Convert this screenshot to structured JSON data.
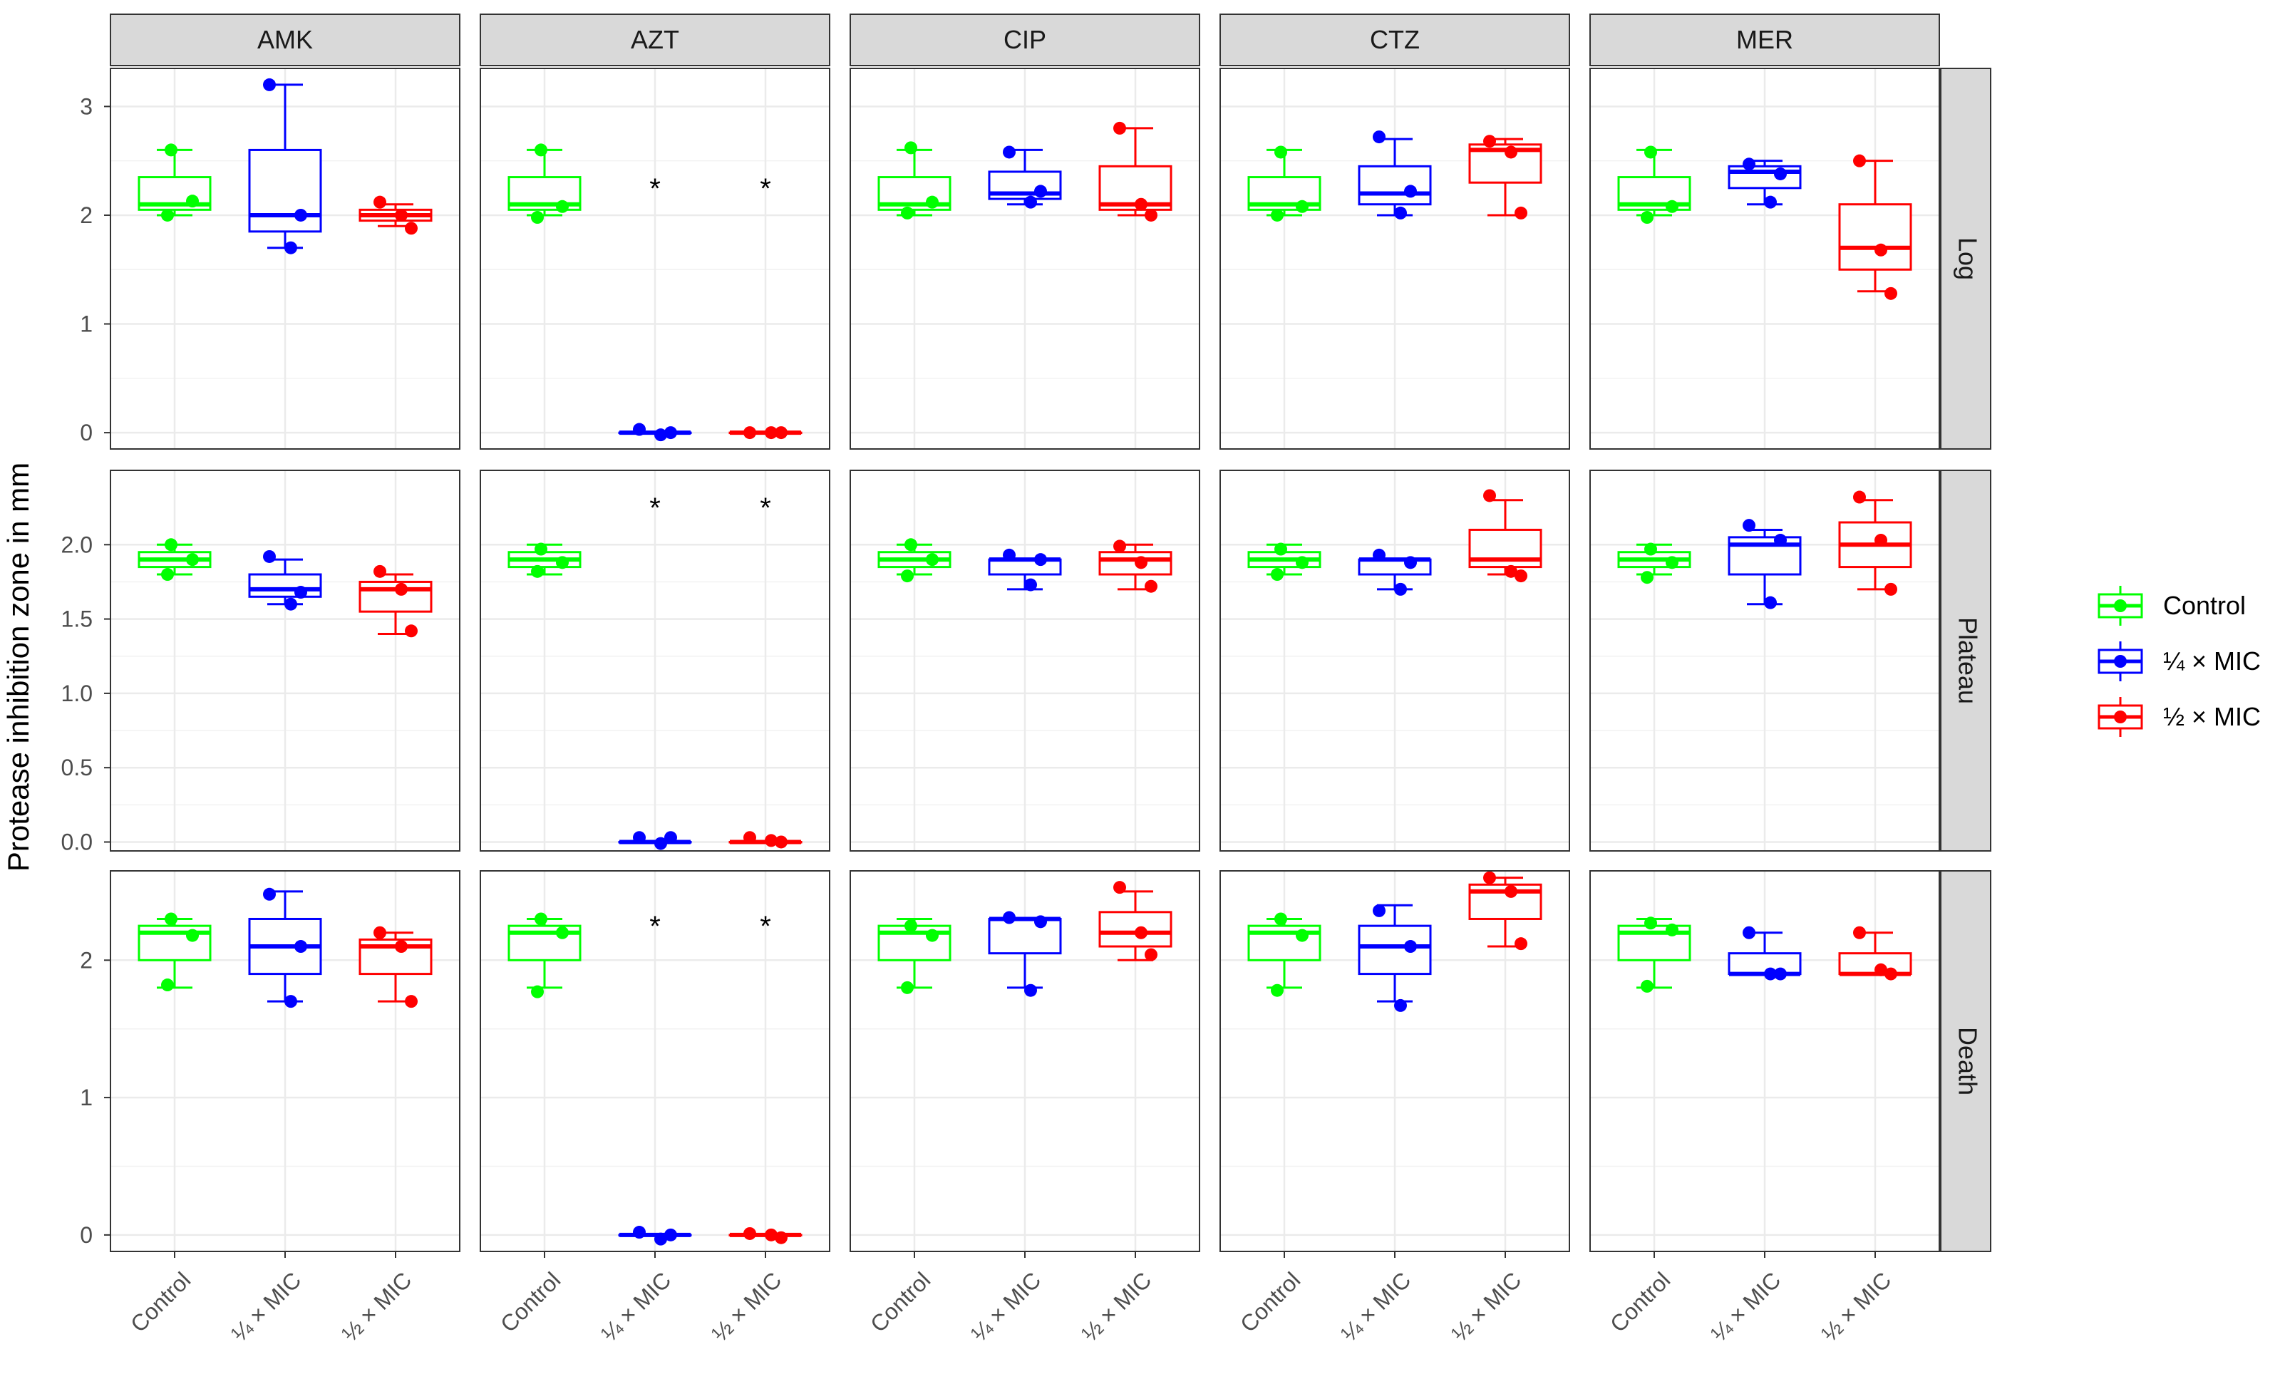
{
  "chart_data": {
    "type": "boxplot",
    "ylabel": "Protease inhibition zone in mm",
    "xlabel": "",
    "facet_columns": [
      "AMK",
      "AZT",
      "CIP",
      "CTZ",
      "MER"
    ],
    "facet_rows": [
      "Log",
      "Plateau",
      "Death"
    ],
    "categories": [
      "Control",
      "¼ × MIC",
      "½ × MIC"
    ],
    "legend": [
      {
        "name": "Control",
        "label": "Control",
        "color": "#00ff00"
      },
      {
        "name": "quarter-mic",
        "label": "¼ × MIC",
        "color": "#0000ff"
      },
      {
        "name": "half-mic",
        "label": "½ × MIC",
        "color": "#ff0000"
      }
    ],
    "significance_marker": "*",
    "rows": [
      {
        "name": "Log",
        "ylim": [
          -0.15,
          3.35
        ],
        "yticks": [
          0,
          1,
          2,
          3
        ],
        "ytick_labels": [
          "0",
          "1",
          "2",
          "3"
        ],
        "panels": [
          {
            "facet": "AMK",
            "groups": [
              {
                "min": 2.0,
                "q1": 2.05,
                "median": 2.1,
                "q3": 2.35,
                "max": 2.6,
                "points": [
                  2.6,
                  2.13,
                  2.0
                ]
              },
              {
                "min": 1.7,
                "q1": 1.85,
                "median": 2.0,
                "q3": 2.6,
                "max": 3.2,
                "points": [
                  3.2,
                  2.0,
                  1.7
                ]
              },
              {
                "min": 1.9,
                "q1": 1.95,
                "median": 2.0,
                "q3": 2.05,
                "max": 2.1,
                "points": [
                  2.12,
                  2.0,
                  1.88
                ]
              }
            ]
          },
          {
            "facet": "AZT",
            "groups": [
              {
                "min": 2.0,
                "q1": 2.05,
                "median": 2.1,
                "q3": 2.35,
                "max": 2.6,
                "points": [
                  2.6,
                  2.08,
                  1.98
                ]
              },
              {
                "min": 0.0,
                "q1": 0.0,
                "median": 0.0,
                "q3": 0.0,
                "max": 0.0,
                "points": [
                  0.03,
                  0.0,
                  -0.02
                ],
                "star": 2.25
              },
              {
                "min": 0.0,
                "q1": 0.0,
                "median": 0.0,
                "q3": 0.0,
                "max": 0.0,
                "points": [
                  0.0,
                  0.0,
                  0.0
                ],
                "star": 2.25
              }
            ]
          },
          {
            "facet": "CIP",
            "groups": [
              {
                "min": 2.0,
                "q1": 2.05,
                "median": 2.1,
                "q3": 2.35,
                "max": 2.6,
                "points": [
                  2.62,
                  2.12,
                  2.02
                ]
              },
              {
                "min": 2.1,
                "q1": 2.15,
                "median": 2.2,
                "q3": 2.4,
                "max": 2.6,
                "points": [
                  2.58,
                  2.22,
                  2.12
                ]
              },
              {
                "min": 2.0,
                "q1": 2.05,
                "median": 2.1,
                "q3": 2.45,
                "max": 2.8,
                "points": [
                  2.8,
                  2.1,
                  2.0
                ]
              }
            ]
          },
          {
            "facet": "CTZ",
            "groups": [
              {
                "min": 2.0,
                "q1": 2.05,
                "median": 2.1,
                "q3": 2.35,
                "max": 2.6,
                "points": [
                  2.58,
                  2.08,
                  2.0
                ]
              },
              {
                "min": 2.0,
                "q1": 2.1,
                "median": 2.2,
                "q3": 2.45,
                "max": 2.7,
                "points": [
                  2.72,
                  2.22,
                  2.02
                ]
              },
              {
                "min": 2.0,
                "q1": 2.3,
                "median": 2.6,
                "q3": 2.65,
                "max": 2.7,
                "points": [
                  2.68,
                  2.58,
                  2.02
                ]
              }
            ]
          },
          {
            "facet": "MER",
            "groups": [
              {
                "min": 2.0,
                "q1": 2.05,
                "median": 2.1,
                "q3": 2.35,
                "max": 2.6,
                "points": [
                  2.58,
                  2.08,
                  1.98
                ]
              },
              {
                "min": 2.1,
                "q1": 2.25,
                "median": 2.4,
                "q3": 2.45,
                "max": 2.5,
                "points": [
                  2.47,
                  2.38,
                  2.12
                ]
              },
              {
                "min": 1.3,
                "q1": 1.5,
                "median": 1.7,
                "q3": 2.1,
                "max": 2.5,
                "points": [
                  2.5,
                  1.68,
                  1.28
                ]
              }
            ]
          }
        ]
      },
      {
        "name": "Plateau",
        "ylim": [
          -0.06,
          2.5
        ],
        "yticks": [
          0,
          0.5,
          1,
          1.5,
          2
        ],
        "ytick_labels": [
          "0.0",
          "0.5",
          "1.0",
          "1.5",
          "2.0"
        ],
        "panels": [
          {
            "facet": "AMK",
            "groups": [
              {
                "min": 1.8,
                "q1": 1.85,
                "median": 1.9,
                "q3": 1.95,
                "max": 2.0,
                "points": [
                  2.0,
                  1.9,
                  1.8
                ]
              },
              {
                "min": 1.6,
                "q1": 1.65,
                "median": 1.7,
                "q3": 1.8,
                "max": 1.9,
                "points": [
                  1.92,
                  1.68,
                  1.6
                ]
              },
              {
                "min": 1.4,
                "q1": 1.55,
                "median": 1.7,
                "q3": 1.75,
                "max": 1.8,
                "points": [
                  1.82,
                  1.7,
                  1.42
                ]
              }
            ]
          },
          {
            "facet": "AZT",
            "groups": [
              {
                "min": 1.8,
                "q1": 1.85,
                "median": 1.9,
                "q3": 1.95,
                "max": 2.0,
                "points": [
                  1.97,
                  1.88,
                  1.82
                ]
              },
              {
                "min": 0.0,
                "q1": 0.0,
                "median": 0.0,
                "q3": 0.0,
                "max": 0.0,
                "points": [
                  0.03,
                  0.03,
                  -0.01
                ],
                "star": 2.25
              },
              {
                "min": 0.0,
                "q1": 0.0,
                "median": 0.0,
                "q3": 0.0,
                "max": 0.0,
                "points": [
                  0.03,
                  0.01,
                  0.0
                ],
                "star": 2.25
              }
            ]
          },
          {
            "facet": "CIP",
            "groups": [
              {
                "min": 1.8,
                "q1": 1.85,
                "median": 1.9,
                "q3": 1.95,
                "max": 2.0,
                "points": [
                  2.0,
                  1.9,
                  1.79
                ]
              },
              {
                "min": 1.7,
                "q1": 1.8,
                "median": 1.9,
                "q3": 1.9,
                "max": 1.9,
                "points": [
                  1.93,
                  1.9,
                  1.73
                ]
              },
              {
                "min": 1.7,
                "q1": 1.8,
                "median": 1.9,
                "q3": 1.95,
                "max": 2.0,
                "points": [
                  1.99,
                  1.88,
                  1.72
                ]
              }
            ]
          },
          {
            "facet": "CTZ",
            "groups": [
              {
                "min": 1.8,
                "q1": 1.85,
                "median": 1.9,
                "q3": 1.95,
                "max": 2.0,
                "points": [
                  1.97,
                  1.88,
                  1.8
                ]
              },
              {
                "min": 1.7,
                "q1": 1.8,
                "median": 1.9,
                "q3": 1.9,
                "max": 1.9,
                "points": [
                  1.93,
                  1.88,
                  1.7
                ]
              },
              {
                "min": 1.8,
                "q1": 1.85,
                "median": 1.9,
                "q3": 2.1,
                "max": 2.3,
                "points": [
                  2.33,
                  1.82,
                  1.79
                ]
              }
            ]
          },
          {
            "facet": "MER",
            "groups": [
              {
                "min": 1.8,
                "q1": 1.85,
                "median": 1.9,
                "q3": 1.95,
                "max": 2.0,
                "points": [
                  1.97,
                  1.88,
                  1.78
                ]
              },
              {
                "min": 1.6,
                "q1": 1.8,
                "median": 2.0,
                "q3": 2.05,
                "max": 2.1,
                "points": [
                  2.13,
                  2.03,
                  1.61
                ]
              },
              {
                "min": 1.7,
                "q1": 1.85,
                "median": 2.0,
                "q3": 2.15,
                "max": 2.3,
                "points": [
                  2.32,
                  2.03,
                  1.7
                ]
              }
            ]
          }
        ]
      },
      {
        "name": "Death",
        "ylim": [
          -0.12,
          2.65
        ],
        "yticks": [
          0,
          1,
          2
        ],
        "ytick_labels": [
          "0",
          "1",
          "2"
        ],
        "panels": [
          {
            "facet": "AMK",
            "groups": [
              {
                "min": 1.8,
                "q1": 2.0,
                "median": 2.2,
                "q3": 2.25,
                "max": 2.3,
                "points": [
                  2.3,
                  2.18,
                  1.82
                ]
              },
              {
                "min": 1.7,
                "q1": 1.9,
                "median": 2.1,
                "q3": 2.3,
                "max": 2.5,
                "points": [
                  2.48,
                  2.1,
                  1.7
                ]
              },
              {
                "min": 1.7,
                "q1": 1.9,
                "median": 2.1,
                "q3": 2.15,
                "max": 2.2,
                "points": [
                  2.2,
                  2.1,
                  1.7
                ]
              }
            ]
          },
          {
            "facet": "AZT",
            "groups": [
              {
                "min": 1.8,
                "q1": 2.0,
                "median": 2.2,
                "q3": 2.25,
                "max": 2.3,
                "points": [
                  2.3,
                  2.2,
                  1.77
                ]
              },
              {
                "min": 0.0,
                "q1": 0.0,
                "median": 0.0,
                "q3": 0.0,
                "max": 0.0,
                "points": [
                  0.02,
                  0.0,
                  -0.03
                ],
                "star": 2.25
              },
              {
                "min": 0.0,
                "q1": 0.0,
                "median": 0.0,
                "q3": 0.0,
                "max": 0.0,
                "points": [
                  0.01,
                  0.0,
                  -0.02
                ],
                "star": 2.25
              }
            ]
          },
          {
            "facet": "CIP",
            "groups": [
              {
                "min": 1.8,
                "q1": 2.0,
                "median": 2.2,
                "q3": 2.25,
                "max": 2.3,
                "points": [
                  2.25,
                  2.18,
                  1.8
                ]
              },
              {
                "min": 1.8,
                "q1": 2.05,
                "median": 2.3,
                "q3": 2.3,
                "max": 2.3,
                "points": [
                  2.31,
                  2.28,
                  1.78
                ]
              },
              {
                "min": 2.0,
                "q1": 2.1,
                "median": 2.2,
                "q3": 2.35,
                "max": 2.5,
                "points": [
                  2.53,
                  2.2,
                  2.04
                ]
              }
            ]
          },
          {
            "facet": "CTZ",
            "groups": [
              {
                "min": 1.8,
                "q1": 2.0,
                "median": 2.2,
                "q3": 2.25,
                "max": 2.3,
                "points": [
                  2.3,
                  2.18,
                  1.78
                ]
              },
              {
                "min": 1.7,
                "q1": 1.9,
                "median": 2.1,
                "q3": 2.25,
                "max": 2.4,
                "points": [
                  2.36,
                  2.1,
                  1.67
                ]
              },
              {
                "min": 2.1,
                "q1": 2.3,
                "median": 2.5,
                "q3": 2.55,
                "max": 2.6,
                "points": [
                  2.6,
                  2.5,
                  2.12
                ]
              }
            ]
          },
          {
            "facet": "MER",
            "groups": [
              {
                "min": 1.8,
                "q1": 2.0,
                "median": 2.2,
                "q3": 2.25,
                "max": 2.3,
                "points": [
                  2.27,
                  2.22,
                  1.81
                ]
              },
              {
                "min": 1.9,
                "q1": 1.9,
                "median": 1.9,
                "q3": 2.05,
                "max": 2.2,
                "points": [
                  2.2,
                  1.9,
                  1.9
                ]
              },
              {
                "min": 1.9,
                "q1": 1.9,
                "median": 1.9,
                "q3": 2.05,
                "max": 2.2,
                "points": [
                  2.2,
                  1.93,
                  1.9
                ]
              }
            ]
          }
        ]
      }
    ]
  }
}
